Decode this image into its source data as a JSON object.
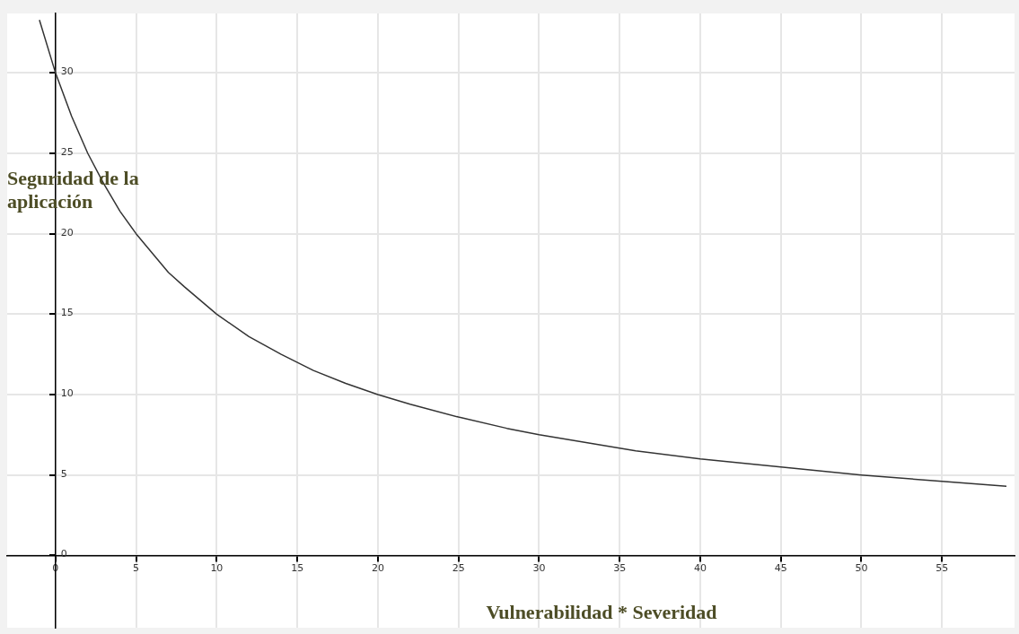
{
  "chart_data": {
    "type": "line",
    "xlabel": "Vulnerabilidad * Severidad",
    "ylabel": "Seguridad de la aplicación",
    "x": [
      -1,
      0,
      1,
      2,
      3,
      4,
      5,
      6,
      7,
      8,
      10,
      12,
      14,
      16,
      18,
      20,
      22,
      25,
      28,
      30,
      33,
      36,
      40,
      45,
      50,
      55,
      59
    ],
    "series": [
      {
        "color": "#333333",
        "values": [
          33.3,
          30,
          27.3,
          25,
          23.1,
          21.4,
          20,
          18.8,
          17.6,
          16.7,
          15,
          13.6,
          12.5,
          11.5,
          10.7,
          10,
          9.4,
          8.6,
          7.9,
          7.5,
          7.0,
          6.5,
          6,
          5.5,
          5,
          4.6,
          4.3
        ]
      }
    ],
    "xlim": [
      -3,
      59.5
    ],
    "ylim": [
      -4.5,
      33.7
    ],
    "xticks": [
      0,
      5,
      10,
      15,
      20,
      25,
      30,
      35,
      40,
      45,
      50,
      55
    ],
    "yticks": [
      0,
      5,
      10,
      15,
      20,
      25,
      30
    ],
    "grid": true,
    "legend": false,
    "marker": "none",
    "line_style": "solid"
  }
}
